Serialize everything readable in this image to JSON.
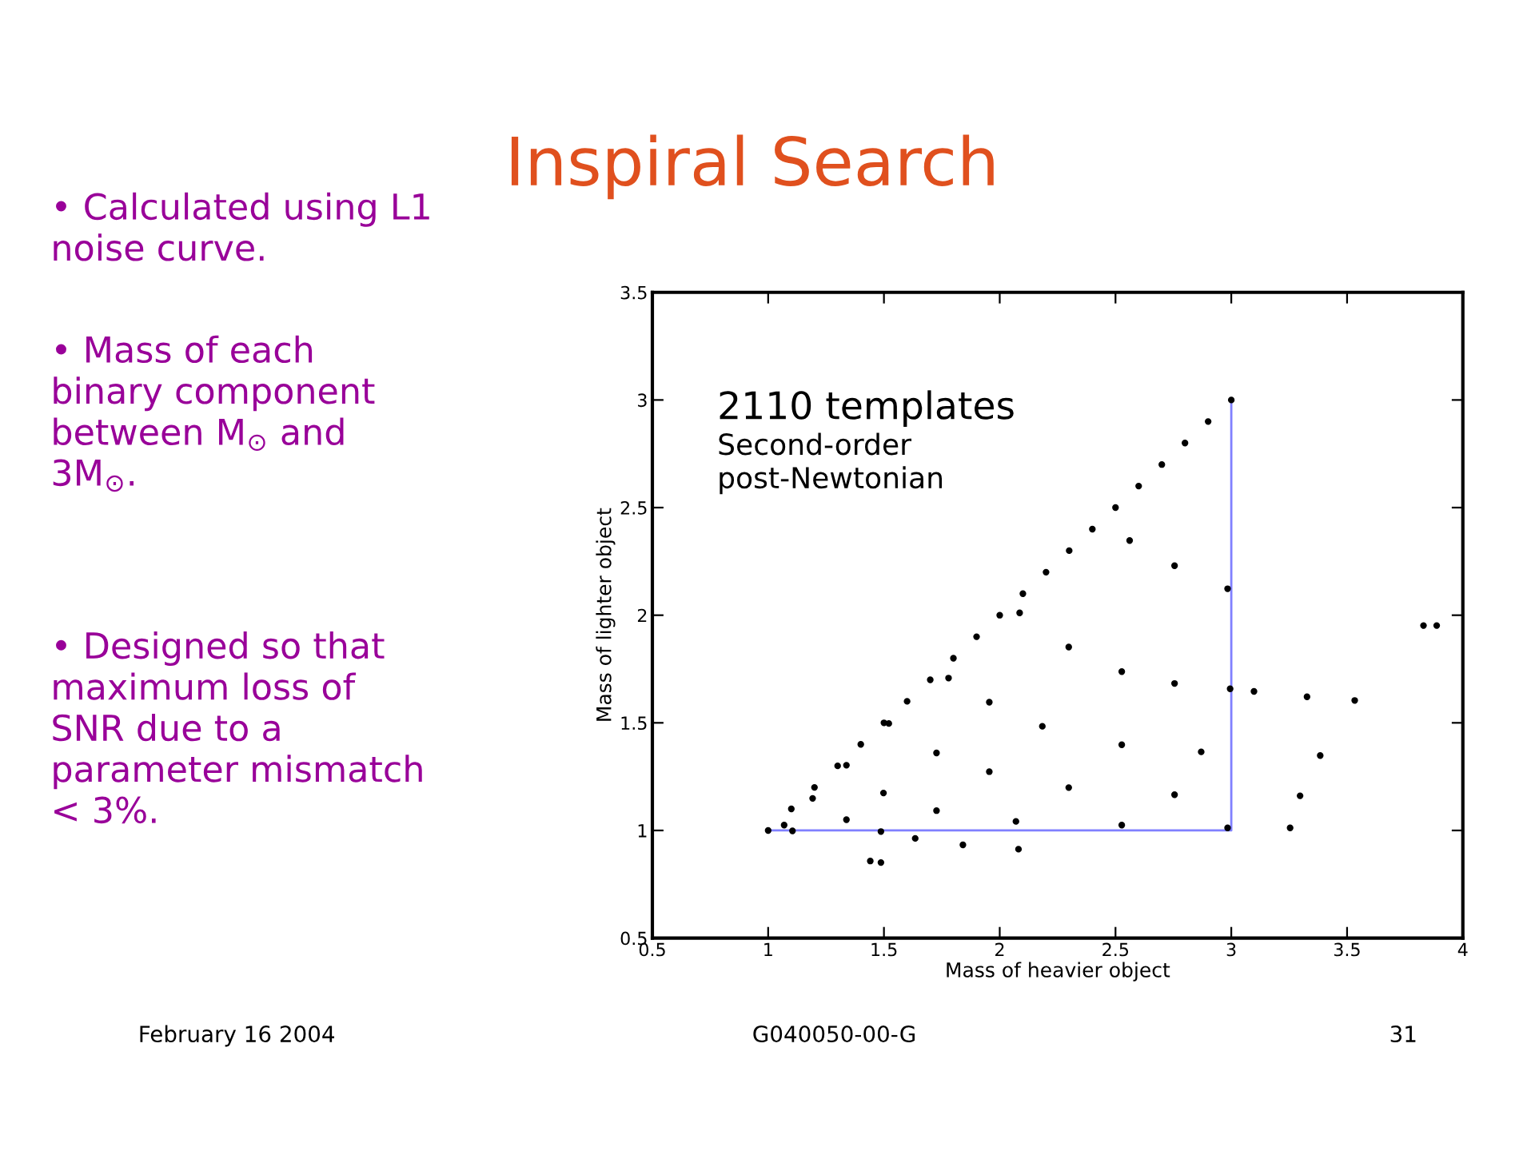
{
  "chart_data": {
    "type": "scatter",
    "title": "Inspiral Search",
    "xlabel": "Mass of heavier object",
    "ylabel": "Mass of lighter object",
    "xlim": [
      0.5,
      4
    ],
    "xticks": [
      0.5,
      1,
      1.5,
      2,
      2.5,
      3,
      3.5,
      4
    ],
    "ylim": [
      0.5,
      3.5
    ],
    "yticks": [
      0.5,
      1,
      1.5,
      2,
      2.5,
      3,
      3.5
    ],
    "grid": false,
    "marker": "circle",
    "series": [
      {
        "type": "line",
        "marker": "none",
        "color": "#8080ff",
        "x": [
          1,
          3,
          3
        ],
        "values": [
          1,
          1,
          3
        ]
      },
      {
        "color": "#000000",
        "x": [
          1.0,
          1.1,
          1.2,
          1.3,
          1.4,
          1.5,
          1.6,
          1.7,
          1.8,
          1.9,
          2.0,
          2.1,
          2.2,
          2.3,
          2.4,
          2.5,
          2.6,
          2.7,
          2.8,
          2.9,
          3.0
        ],
        "values": [
          1.0,
          1.1,
          1.2,
          1.3,
          1.4,
          1.5,
          1.6,
          1.7,
          1.8,
          1.9,
          2.0,
          2.1,
          2.2,
          2.3,
          2.4,
          2.5,
          2.6,
          2.7,
          2.8,
          2.9,
          3.0
        ]
      },
      {
        "color": "#000000",
        "x": [
          2.561,
          2.755,
          2.984,
          2.086,
          2.298,
          2.527,
          2.755,
          2.995,
          3.098,
          3.327,
          3.533,
          3.83,
          3.887,
          1.779,
          1.955,
          2.184,
          2.527,
          2.87,
          3.384,
          1.521,
          1.727,
          1.955,
          2.298,
          2.755,
          3.297,
          1.338,
          1.498,
          1.727,
          2.07,
          2.527,
          2.984,
          3.254,
          1.192,
          1.338,
          1.487,
          1.069,
          1.105,
          1.635,
          1.841,
          2.081,
          1.441,
          1.487
        ],
        "values": [
          2.347,
          2.23,
          2.123,
          2.011,
          1.852,
          1.738,
          1.683,
          1.658,
          1.646,
          1.621,
          1.604,
          1.952,
          1.952,
          1.708,
          1.596,
          1.484,
          1.398,
          1.365,
          1.348,
          1.497,
          1.36,
          1.273,
          1.199,
          1.166,
          1.161,
          1.303,
          1.174,
          1.092,
          1.042,
          1.025,
          1.012,
          1.012,
          1.149,
          1.05,
          0.995,
          1.025,
          0.998,
          0.963,
          0.933,
          0.913,
          0.858,
          0.851
        ]
      }
    ],
    "annotations": [
      "2110 templates",
      "Second-order\npost-Newtonian",
      "• Calculated using L1\nnoise curve.",
      "• Mass of each\nbinary component\nbetween M$_{⊙}$ and\n3M$_{⊙}$.",
      "• Designed so that\nmaximum loss of\nSNR due to a\nparameter mismatch\n< 3%.",
      "February 16 2004",
      "G040050-00-G",
      "31"
    ]
  }
}
